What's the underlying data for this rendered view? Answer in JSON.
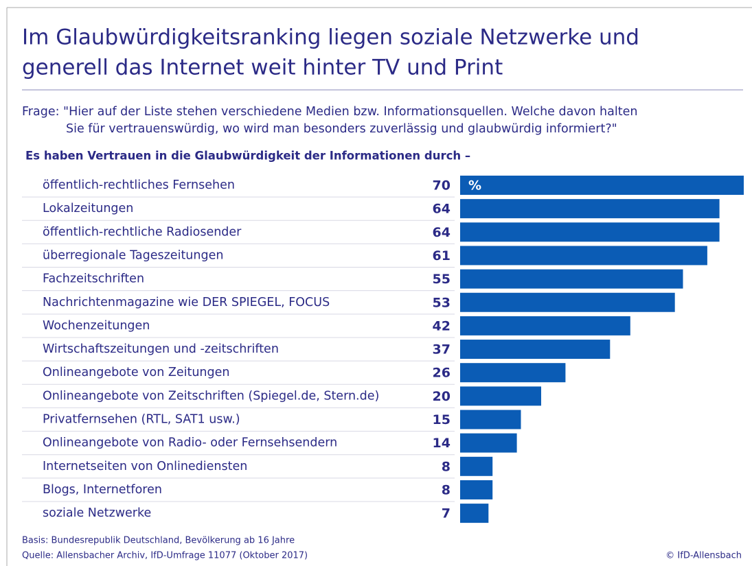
{
  "title_lines": [
    "Im Glaubwürdigkeitsranking liegen soziale Netzwerke und",
    "generell das Internet weit hinter TV und Print"
  ],
  "question_lines": [
    "Frage: \"Hier auf der Liste stehen verschiedene Medien bzw. Informationsquellen. Welche davon halten",
    "Sie für vertrauenswürdig, wo wird man besonders zuverlässig und glaubwürdig informiert?\""
  ],
  "chart_data": {
    "type": "bar",
    "orientation": "horizontal",
    "subtitle": "Es haben Vertrauen in die Glaubwürdigkeit der Informationen durch –",
    "unit": "%",
    "color": "#0b5cb5",
    "categories": [
      "öffentlich-rechtliches Fernsehen",
      "Lokalzeitungen",
      "öffentlich-rechtliche Radiosender",
      "überregionale Tageszeitungen",
      "Fachzeitschriften",
      "Nachrichtenmagazine wie DER SPIEGEL, FOCUS",
      "Wochenzeitungen",
      "Wirtschaftszeitungen und -zeitschriften",
      "Onlineangebote von Zeitungen",
      "Onlineangebote von Zeitschriften (Spiegel.de, Stern.de)",
      "Privatfernsehen (RTL, SAT1 usw.)",
      "Onlineangebote von Radio- oder Fernsehsendern",
      "Internetseiten von Onlinediensten",
      "Blogs, Internetforen",
      "soziale Netzwerke"
    ],
    "values": [
      70,
      64,
      64,
      61,
      55,
      53,
      42,
      37,
      26,
      20,
      15,
      14,
      8,
      8,
      7
    ]
  },
  "footer_lines": [
    "Basis: Bundesrepublik Deutschland, Bevölkerung ab 16 Jahre",
    "Quelle: Allensbacher Archiv, IfD-Umfrage 11077 (Oktober 2017)"
  ],
  "copyright": "© IfD-Allensbach"
}
